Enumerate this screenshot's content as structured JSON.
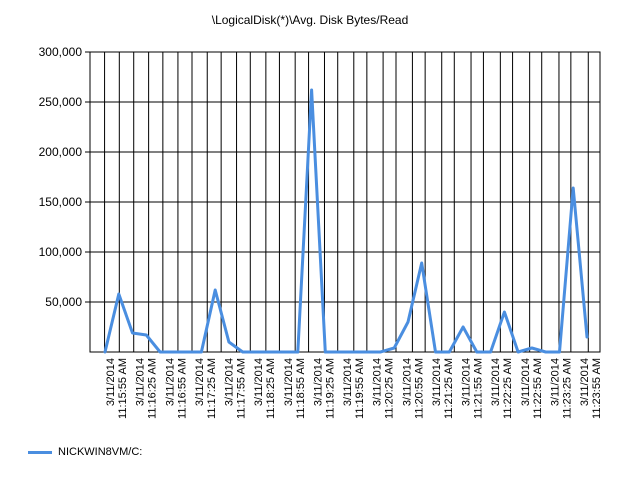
{
  "chart_data": {
    "type": "line",
    "title": "\\LogicalDisk(*)\\Avg. Disk Bytes/Read",
    "xlabel": "",
    "ylabel": "",
    "ylim": [
      0,
      300000
    ],
    "y_ticks": [
      "300,000",
      "250,000",
      "200,000",
      "150,000",
      "100,000",
      "50,000"
    ],
    "y_tick_values": [
      300000,
      250000,
      200000,
      150000,
      100000,
      50000
    ],
    "grid": true,
    "legend_position": "bottom-left",
    "x_tick_labels": [
      [
        "3/11/2014",
        "11:15:55 AM"
      ],
      [
        "3/11/2014",
        "11:16:25 AM"
      ],
      [
        "3/11/2014",
        "11:16:55 AM"
      ],
      [
        "3/11/2014",
        "11:17:25 AM"
      ],
      [
        "3/11/2014",
        "11:17:55 AM"
      ],
      [
        "3/11/2014",
        "11:18:25 AM"
      ],
      [
        "3/11/2014",
        "11:18:55 AM"
      ],
      [
        "3/11/2014",
        "11:19:25 AM"
      ],
      [
        "3/11/2014",
        "11:19:55 AM"
      ],
      [
        "3/11/2014",
        "11:20:25 AM"
      ],
      [
        "3/11/2014",
        "11:20:55 AM"
      ],
      [
        "3/11/2014",
        "11:21:25 AM"
      ],
      [
        "3/11/2014",
        "11:21:55 AM"
      ],
      [
        "3/11/2014",
        "11:22:25 AM"
      ],
      [
        "3/11/2014",
        "11:22:55 AM"
      ],
      [
        "3/11/2014",
        "11:23:25 AM"
      ],
      [
        "3/11/2014",
        "11:23:55 AM"
      ]
    ],
    "series": [
      {
        "name": "NICKWIN8VM/C:",
        "color": "#4a8ee0",
        "values": [
          0,
          58000,
          19000,
          17000,
          0,
          0,
          0,
          0,
          62000,
          10000,
          0,
          0,
          0,
          0,
          0,
          262000,
          0,
          0,
          0,
          0,
          0,
          4000,
          30000,
          89000,
          0,
          0,
          25000,
          0,
          0,
          40000,
          0,
          4000,
          0,
          0,
          164000,
          15000
        ]
      }
    ]
  }
}
